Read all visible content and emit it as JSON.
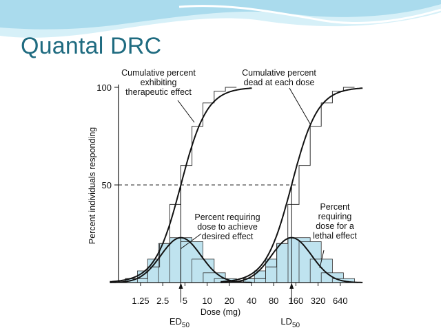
{
  "slide": {
    "title": "Quantal DRC",
    "colors": {
      "title": "#1f6b80",
      "header_wave_light": "#d6f0f8",
      "header_wave_mid": "#9fd6ea",
      "bar_fill": "#bfe3ef"
    }
  },
  "chart_data": {
    "type": "bar",
    "title": "",
    "xlabel": "Dose (mg)",
    "ylabel": "Percent individuals responding",
    "x_scale": "log2",
    "ylim": [
      0,
      100
    ],
    "y_ticks": [
      "100",
      "50"
    ],
    "x_ticks": [
      "1.25",
      "2.5",
      "5",
      "10",
      "20",
      "40",
      "80",
      "160",
      "320",
      "640"
    ],
    "reference_line": {
      "y": 50,
      "style": "dashed"
    },
    "grid": false,
    "series": [
      {
        "group": "therapeutic",
        "bars": [
          {
            "x": 1.1,
            "value": 2
          },
          {
            "x": 1.6,
            "value": 6
          },
          {
            "x": 2.2,
            "value": 12
          },
          {
            "x": 3.1,
            "value": 20
          },
          {
            "x": 4.4,
            "value": 23
          },
          {
            "x": 6.2,
            "value": 21
          },
          {
            "x": 8.8,
            "value": 12
          },
          {
            "x": 12.5,
            "value": 5
          },
          {
            "x": 17.7,
            "value": 2
          }
        ],
        "cumulative_steps": [
          {
            "x": 1.1,
            "value": 2
          },
          {
            "x": 1.6,
            "value": 8
          },
          {
            "x": 2.2,
            "value": 20
          },
          {
            "x": 3.1,
            "value": 40
          },
          {
            "x": 4.4,
            "value": 60
          },
          {
            "x": 6.2,
            "value": 80
          },
          {
            "x": 8.8,
            "value": 92
          },
          {
            "x": 12.5,
            "value": 98
          },
          {
            "x": 17.7,
            "value": 100
          }
        ]
      },
      {
        "group": "lethal",
        "bars": [
          {
            "x": 44,
            "value": 2
          },
          {
            "x": 62,
            "value": 6
          },
          {
            "x": 88,
            "value": 12
          },
          {
            "x": 125,
            "value": 20
          },
          {
            "x": 177,
            "value": 23
          },
          {
            "x": 250,
            "value": 21
          },
          {
            "x": 354,
            "value": 12
          },
          {
            "x": 500,
            "value": 5
          },
          {
            "x": 707,
            "value": 2
          }
        ],
        "cumulative_steps": [
          {
            "x": 44,
            "value": 2
          },
          {
            "x": 62,
            "value": 8
          },
          {
            "x": 88,
            "value": 20
          },
          {
            "x": 125,
            "value": 40
          },
          {
            "x": 177,
            "value": 60
          },
          {
            "x": 250,
            "value": 80
          },
          {
            "x": 354,
            "value": 92
          },
          {
            "x": 500,
            "value": 98
          },
          {
            "x": 707,
            "value": 100
          }
        ]
      }
    ],
    "curves": [
      {
        "kind": "cumulative",
        "center": 4.4,
        "sd_log2": 1.0
      },
      {
        "kind": "frequency",
        "center": 4.4,
        "peak": 23,
        "sd_log2": 0.9
      },
      {
        "kind": "cumulative",
        "center": 140,
        "sd_log2": 1.0
      },
      {
        "kind": "frequency",
        "center": 140,
        "peak": 23,
        "sd_log2": 0.9
      }
    ],
    "markers": [
      {
        "name": "ED",
        "sub": "50",
        "x": 4.4
      },
      {
        "name": "LD",
        "sub": "50",
        "x": 140
      }
    ],
    "annotations": [
      {
        "id": "cum-ther",
        "lines": [
          "Cumulative percent",
          "exhibiting",
          "therapeutic effect"
        ]
      },
      {
        "id": "cum-dead",
        "lines": [
          "Cumulative percent",
          "dead at each dose"
        ]
      },
      {
        "id": "req-ther",
        "lines": [
          "Percent requiring",
          "dose to achieve",
          "desired effect"
        ]
      },
      {
        "id": "req-lethal",
        "lines": [
          "Percent",
          "requiring",
          "dose for a",
          "lethal effect"
        ]
      }
    ]
  }
}
